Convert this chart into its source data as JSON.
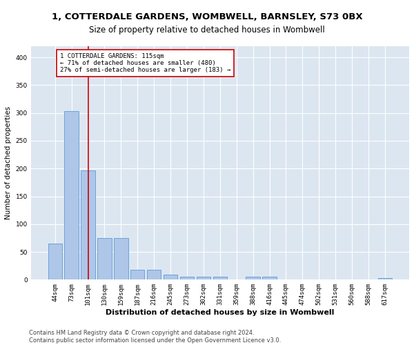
{
  "title": "1, COTTERDALE GARDENS, WOMBWELL, BARNSLEY, S73 0BX",
  "subtitle": "Size of property relative to detached houses in Wombwell",
  "xlabel": "Distribution of detached houses by size in Wombwell",
  "ylabel": "Number of detached properties",
  "categories": [
    "44sqm",
    "73sqm",
    "101sqm",
    "130sqm",
    "159sqm",
    "187sqm",
    "216sqm",
    "245sqm",
    "273sqm",
    "302sqm",
    "331sqm",
    "359sqm",
    "388sqm",
    "416sqm",
    "445sqm",
    "474sqm",
    "502sqm",
    "531sqm",
    "560sqm",
    "588sqm",
    "617sqm"
  ],
  "values": [
    65,
    303,
    197,
    75,
    75,
    18,
    18,
    9,
    6,
    5,
    5,
    0,
    5,
    5,
    0,
    0,
    0,
    0,
    0,
    0,
    3
  ],
  "bar_color": "#aec6e8",
  "bar_edge_color": "#5b9bd5",
  "vline_x": 2,
  "vline_color": "#cc0000",
  "annotation_text": "1 COTTERDALE GARDENS: 115sqm\n← 71% of detached houses are smaller (480)\n27% of semi-detached houses are larger (183) →",
  "annotation_box_color": "#ffffff",
  "annotation_box_edge": "#cc0000",
  "ylim": [
    0,
    420
  ],
  "yticks": [
    0,
    50,
    100,
    150,
    200,
    250,
    300,
    350,
    400
  ],
  "plot_bg": "#dce6f1",
  "footer": "Contains HM Land Registry data © Crown copyright and database right 2024.\nContains public sector information licensed under the Open Government Licence v3.0.",
  "title_fontsize": 9.5,
  "subtitle_fontsize": 8.5,
  "xlabel_fontsize": 8,
  "ylabel_fontsize": 7.5,
  "tick_fontsize": 6.5,
  "footer_fontsize": 6
}
